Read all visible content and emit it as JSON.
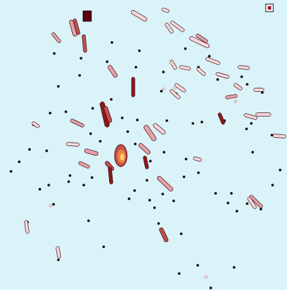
{
  "scene": {
    "background": "#daf3f8",
    "palette": {
      "darkest": "#5a0010",
      "dark": "#8b1a1a",
      "mid": "#c0504d",
      "light": "#e6a0a8",
      "pale": "#f6d8dc",
      "hot": "#f08040",
      "center": "#ffd27a",
      "dot": "#1a0a0a"
    }
  }
}
